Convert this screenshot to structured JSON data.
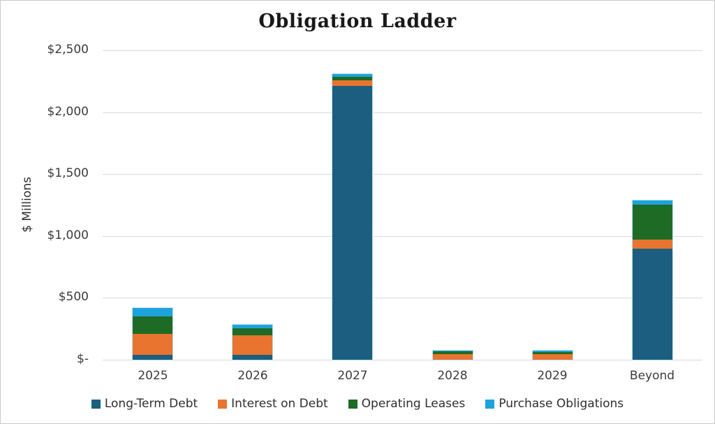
{
  "chart_data": {
    "type": "bar",
    "stacked": true,
    "title": "Obligation Ladder",
    "xlabel": "",
    "ylabel": "$ Millions",
    "categories": [
      "2025",
      "2026",
      "2027",
      "2028",
      "2029",
      "Beyond"
    ],
    "series": [
      {
        "name": "Long-Term Debt",
        "color": "#1b5e7f",
        "values": [
          40,
          40,
          2210,
          0,
          0,
          900
        ]
      },
      {
        "name": "Interest on Debt",
        "color": "#e8742f",
        "values": [
          170,
          160,
          50,
          45,
          43,
          70
        ]
      },
      {
        "name": "Operating Leases",
        "color": "#1e6b26",
        "values": [
          140,
          55,
          25,
          20,
          20,
          285
        ]
      },
      {
        "name": "Purchase Obligations",
        "color": "#1ca3dc",
        "values": [
          70,
          25,
          25,
          10,
          8,
          30
        ]
      }
    ],
    "totals": [
      420,
      280,
      2310,
      75,
      71,
      1285
    ],
    "ylim": [
      0,
      2500
    ],
    "yticks": [
      {
        "value": 0,
        "label": "$-"
      },
      {
        "value": 500,
        "label": "$500"
      },
      {
        "value": 1000,
        "label": "$1,000"
      },
      {
        "value": 1500,
        "label": "$1,500"
      },
      {
        "value": 2000,
        "label": "$2,000"
      },
      {
        "value": 2500,
        "label": "$2,500"
      }
    ],
    "grid": true,
    "legend_position": "bottom",
    "colors": {
      "gridline": "#d9d9d9",
      "text": "#3b3b3b",
      "bar_outline": "#b9e0f2"
    }
  }
}
